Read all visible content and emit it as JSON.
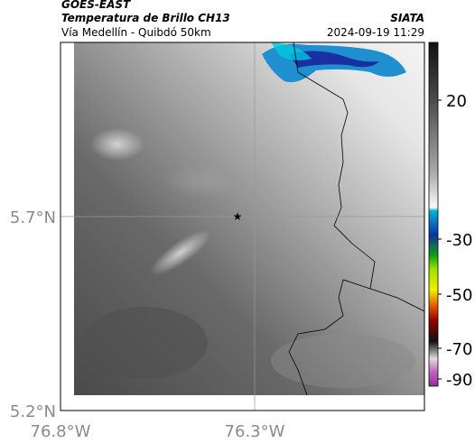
{
  "header": {
    "title": "GOES-EAST",
    "subtitle": "Temperatura de Brillo CH13",
    "location": "Vía Medellín - Quibdó 50km",
    "source": "SIATA",
    "datetime": "2024-09-19 11:29"
  },
  "map": {
    "lat_ticks": [
      "5.7°N",
      "5.2°N"
    ],
    "lon_ticks": [
      "76.8°W",
      "76.3°W"
    ]
  },
  "colorbar": {
    "ticks": [
      20,
      -30,
      -50,
      -70,
      -90
    ]
  }
}
